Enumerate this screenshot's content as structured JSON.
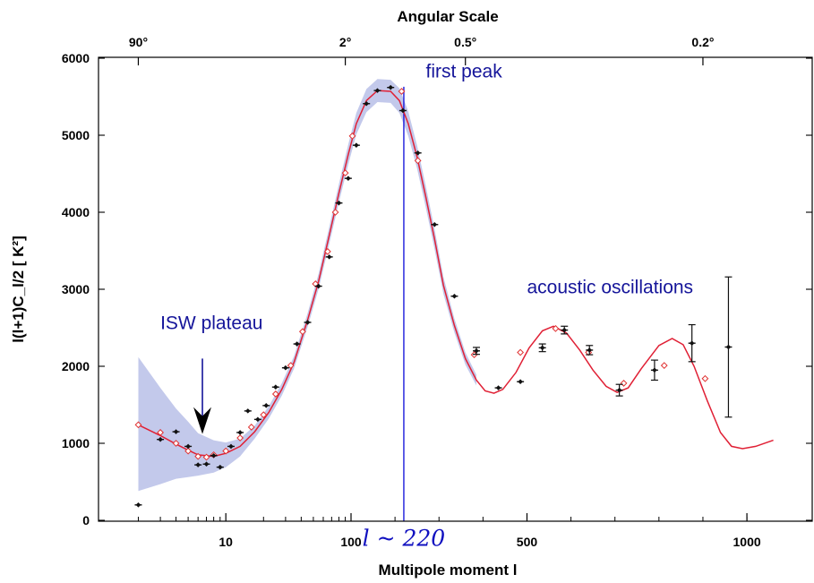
{
  "chart_data": {
    "type": "scatter",
    "title": "",
    "xlabel": "Multipole moment l",
    "ylabel": "l(l+1)C_l/2 [ K²]",
    "x_scale": "log-ish (linear above l=100)",
    "xlim": [
      1.5,
      1100
    ],
    "ylim": [
      0,
      6000
    ],
    "x_ticks": [
      10,
      100,
      500,
      1000
    ],
    "y_ticks": [
      0,
      1000,
      2000,
      3000,
      4000,
      5000,
      6000
    ],
    "top_axis": {
      "title": "Angular Scale",
      "ticks": [
        {
          "label": "90°",
          "l": 2
        },
        {
          "label": "2°",
          "l": 90
        },
        {
          "label": "0.5°",
          "l": 360
        },
        {
          "label": "0.2°",
          "l": 900
        }
      ]
    },
    "grid": false,
    "series": [
      {
        "name": "",
        "kind": "measured-points",
        "color": "#111111",
        "points": [
          [
            2,
            200,
            15
          ],
          [
            3,
            1050,
            15
          ],
          [
            4,
            1150,
            15
          ],
          [
            5,
            960,
            15
          ],
          [
            6,
            720,
            15
          ],
          [
            7,
            730,
            15
          ],
          [
            8,
            840,
            15
          ],
          [
            9,
            690,
            15
          ],
          [
            11,
            960,
            15
          ],
          [
            13,
            1140,
            15
          ],
          [
            15,
            1420,
            15
          ],
          [
            18,
            1310,
            20
          ],
          [
            21,
            1490,
            20
          ],
          [
            25,
            1730,
            20
          ],
          [
            30,
            1980,
            20
          ],
          [
            37,
            2290,
            25
          ],
          [
            45,
            2570,
            25
          ],
          [
            55,
            3040,
            25
          ],
          [
            67,
            3420,
            30
          ],
          [
            80,
            4120,
            30
          ],
          [
            95,
            4440,
            30
          ],
          [
            112,
            4870,
            30
          ],
          [
            135,
            5410,
            35
          ],
          [
            160,
            5580,
            35
          ],
          [
            190,
            5620,
            35
          ],
          [
            218,
            5320,
            35
          ],
          [
            252,
            4770,
            35
          ],
          [
            290,
            3840,
            35
          ],
          [
            335,
            2910,
            35
          ],
          [
            385,
            2200,
            45
          ],
          [
            435,
            1720,
            35
          ],
          [
            485,
            1800,
            40
          ],
          [
            535,
            2240,
            50
          ],
          [
            585,
            2470,
            50
          ],
          [
            642,
            2210,
            60
          ],
          [
            710,
            1690,
            75
          ],
          [
            790,
            1950,
            130
          ],
          [
            875,
            2300,
            240
          ],
          [
            958,
            2250,
            910
          ]
        ]
      },
      {
        "name": "",
        "kind": "model-points",
        "color": "#e03030",
        "points": [
          [
            2,
            1240
          ],
          [
            3,
            1140
          ],
          [
            4,
            1000
          ],
          [
            5,
            900
          ],
          [
            6,
            830
          ],
          [
            7,
            820
          ],
          [
            8,
            850
          ],
          [
            10,
            900
          ],
          [
            13,
            1070
          ],
          [
            16,
            1210
          ],
          [
            20,
            1370
          ],
          [
            25,
            1640
          ],
          [
            33,
            2010
          ],
          [
            41,
            2450
          ],
          [
            52,
            3070
          ],
          [
            65,
            3490
          ],
          [
            75,
            4000
          ],
          [
            90,
            4510
          ],
          [
            103,
            4990
          ],
          [
            215,
            5570
          ],
          [
            252,
            4670
          ],
          [
            380,
            2150
          ],
          [
            485,
            2180
          ],
          [
            565,
            2490
          ],
          [
            640,
            2180
          ],
          [
            720,
            1780
          ],
          [
            812,
            2010
          ],
          [
            905,
            1840
          ]
        ]
      },
      {
        "name": "",
        "kind": "model-curve",
        "color": "#e02035",
        "points": [
          [
            2,
            1240
          ],
          [
            3,
            1100
          ],
          [
            4,
            990
          ],
          [
            5,
            910
          ],
          [
            6,
            850
          ],
          [
            8,
            830
          ],
          [
            10,
            870
          ],
          [
            13,
            960
          ],
          [
            17,
            1150
          ],
          [
            22,
            1400
          ],
          [
            28,
            1700
          ],
          [
            35,
            2050
          ],
          [
            45,
            2600
          ],
          [
            55,
            3100
          ],
          [
            67,
            3700
          ],
          [
            80,
            4250
          ],
          [
            95,
            4750
          ],
          [
            112,
            5150
          ],
          [
            135,
            5450
          ],
          [
            160,
            5580
          ],
          [
            190,
            5570
          ],
          [
            210,
            5450
          ],
          [
            230,
            5150
          ],
          [
            250,
            4720
          ],
          [
            270,
            4200
          ],
          [
            290,
            3650
          ],
          [
            310,
            3050
          ],
          [
            335,
            2530
          ],
          [
            360,
            2100
          ],
          [
            385,
            1820
          ],
          [
            405,
            1680
          ],
          [
            425,
            1650
          ],
          [
            445,
            1700
          ],
          [
            475,
            1920
          ],
          [
            505,
            2240
          ],
          [
            535,
            2460
          ],
          [
            560,
            2520
          ],
          [
            590,
            2430
          ],
          [
            620,
            2210
          ],
          [
            650,
            1950
          ],
          [
            680,
            1740
          ],
          [
            705,
            1660
          ],
          [
            730,
            1720
          ],
          [
            760,
            1970
          ],
          [
            800,
            2270
          ],
          [
            830,
            2360
          ],
          [
            855,
            2280
          ],
          [
            880,
            2000
          ],
          [
            910,
            1550
          ],
          [
            940,
            1140
          ],
          [
            965,
            960
          ],
          [
            990,
            930
          ],
          [
            1020,
            960
          ],
          [
            1060,
            1040
          ]
        ]
      },
      {
        "name": "",
        "kind": "cosmic-variance-band",
        "color": "#b9bfe8",
        "upper": [
          [
            2,
            2120
          ],
          [
            3,
            1720
          ],
          [
            4,
            1450
          ],
          [
            5,
            1280
          ],
          [
            6,
            1130
          ],
          [
            8,
            1040
          ],
          [
            10,
            1010
          ],
          [
            13,
            1060
          ],
          [
            17,
            1230
          ],
          [
            22,
            1480
          ],
          [
            28,
            1780
          ],
          [
            35,
            2130
          ],
          [
            45,
            2690
          ],
          [
            55,
            3200
          ],
          [
            67,
            3810
          ],
          [
            80,
            4370
          ],
          [
            95,
            4880
          ],
          [
            112,
            5290
          ],
          [
            135,
            5600
          ],
          [
            160,
            5730
          ],
          [
            190,
            5720
          ],
          [
            210,
            5610
          ],
          [
            230,
            5310
          ],
          [
            250,
            4870
          ],
          [
            270,
            4340
          ],
          [
            290,
            3780
          ],
          [
            310,
            3160
          ],
          [
            335,
            2620
          ],
          [
            360,
            2180
          ],
          [
            385,
            1890
          ]
        ],
        "lower": [
          [
            2,
            380
          ],
          [
            3,
            470
          ],
          [
            4,
            540
          ],
          [
            5,
            560
          ],
          [
            6,
            580
          ],
          [
            8,
            620
          ],
          [
            10,
            690
          ],
          [
            13,
            830
          ],
          [
            17,
            1060
          ],
          [
            22,
            1320
          ],
          [
            28,
            1620
          ],
          [
            35,
            1970
          ],
          [
            45,
            2510
          ],
          [
            55,
            3000
          ],
          [
            67,
            3590
          ],
          [
            80,
            4130
          ],
          [
            95,
            4620
          ],
          [
            112,
            5010
          ],
          [
            135,
            5300
          ],
          [
            160,
            5430
          ],
          [
            190,
            5420
          ],
          [
            210,
            5290
          ],
          [
            230,
            4990
          ],
          [
            250,
            4570
          ],
          [
            270,
            4060
          ],
          [
            290,
            3520
          ],
          [
            310,
            2940
          ],
          [
            335,
            2440
          ],
          [
            360,
            2020
          ],
          [
            385,
            1750
          ]
        ]
      }
    ],
    "annotations": [
      {
        "text": "first peak",
        "x": 270,
        "y": 5750
      },
      {
        "text": "acoustic oscillations",
        "x": 500,
        "y": 2950
      },
      {
        "text": "ISW plateau",
        "x": 3,
        "y": 2480
      },
      {
        "text": "l ~ 220",
        "x": 220,
        "y": -330
      }
    ],
    "vertical_line": {
      "l": 220,
      "color": "#1a1adc"
    },
    "arrow": {
      "x": 6.5,
      "from_y": 2100,
      "to_y": 1120,
      "color": "#15159a"
    }
  }
}
